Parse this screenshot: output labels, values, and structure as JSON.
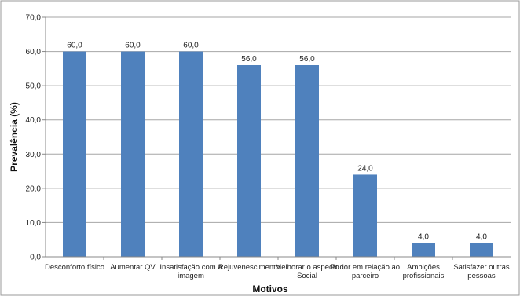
{
  "chart_data": {
    "type": "bar",
    "categories": [
      [
        "Desconforto físico"
      ],
      [
        "Aumentar QV"
      ],
      [
        "Insatisfação com a",
        "imagem"
      ],
      [
        "Rejuvenescimento"
      ],
      [
        "Melhorar o aspecto",
        "Social"
      ],
      [
        "Pudor em relação ao",
        "parceiro"
      ],
      [
        "Ambições",
        "profissionais"
      ],
      [
        "Satisfazer outras",
        "pessoas"
      ]
    ],
    "values": [
      60.0,
      60.0,
      60.0,
      56.0,
      56.0,
      24.0,
      4.0,
      4.0
    ],
    "value_labels": [
      "60,0",
      "60,0",
      "60,0",
      "56,0",
      "56,0",
      "24,0",
      "4,0",
      "4,0"
    ],
    "yticks": [
      "0,0",
      "10,0",
      "20,0",
      "30,0",
      "40,0",
      "50,0",
      "60,0",
      "70,0"
    ],
    "ylim": [
      0,
      70
    ],
    "xlabel": "Motivos",
    "ylabel": "Prevalência (%)",
    "grid": true,
    "colors": {
      "bar": "#4f81bd",
      "grid": "#a6a6a6",
      "axis": "#888888",
      "border": "#9a9a9a"
    }
  }
}
